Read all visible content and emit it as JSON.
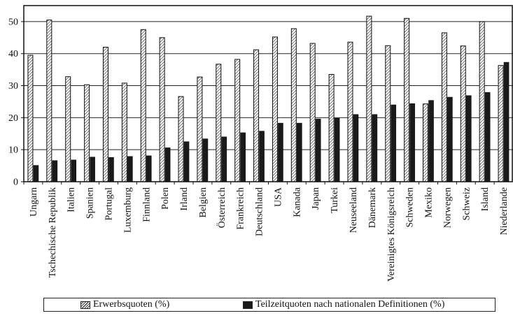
{
  "chart_data": {
    "type": "bar",
    "categories": [
      "Ungarn",
      "Tschechische Republik",
      "Italien",
      "Spanien",
      "Portugal",
      "Luxemburg",
      "Finnland",
      "Polen",
      "Irland",
      "Belgien",
      "Österreich",
      "Frankreich",
      "Deutschland",
      "USA",
      "Kanada",
      "Japan",
      "Turkei",
      "Neuseeland",
      "Dänemark",
      "Vereinigtes Königsreich",
      "Schweden",
      "Mexiko",
      "Norwegen",
      "Schweiz",
      "Island",
      "Niederlande"
    ],
    "series": [
      {
        "name": "Erwerbsquoten (%)",
        "values": [
          39.5,
          50.5,
          32.8,
          30.3,
          42.0,
          30.8,
          47.5,
          45.0,
          26.6,
          32.7,
          36.7,
          38.2,
          41.2,
          45.2,
          47.8,
          43.2,
          33.5,
          43.6,
          51.7,
          42.5,
          51.0,
          24.3,
          46.5,
          42.4,
          50.0,
          36.3
        ],
        "color": "#ffffff",
        "pattern": "hatch"
      },
      {
        "name": "Teilzeitquoten nach nationalen Definitionen (%)",
        "values": [
          5.1,
          6.6,
          6.8,
          7.7,
          7.6,
          7.9,
          8.1,
          10.6,
          12.5,
          13.4,
          14.0,
          15.3,
          15.8,
          18.3,
          18.3,
          19.6,
          19.8,
          21.0,
          21.0,
          24.0,
          24.4,
          25.4,
          26.4,
          26.9,
          27.9,
          37.3
        ],
        "color": "#1a1a1a",
        "pattern": "solid"
      }
    ],
    "ylim": [
      0,
      55
    ],
    "yticks": [
      0,
      10,
      20,
      30,
      40,
      50
    ],
    "grid": true,
    "legend": "bottom",
    "title": "",
    "xlabel": "",
    "ylabel": ""
  }
}
